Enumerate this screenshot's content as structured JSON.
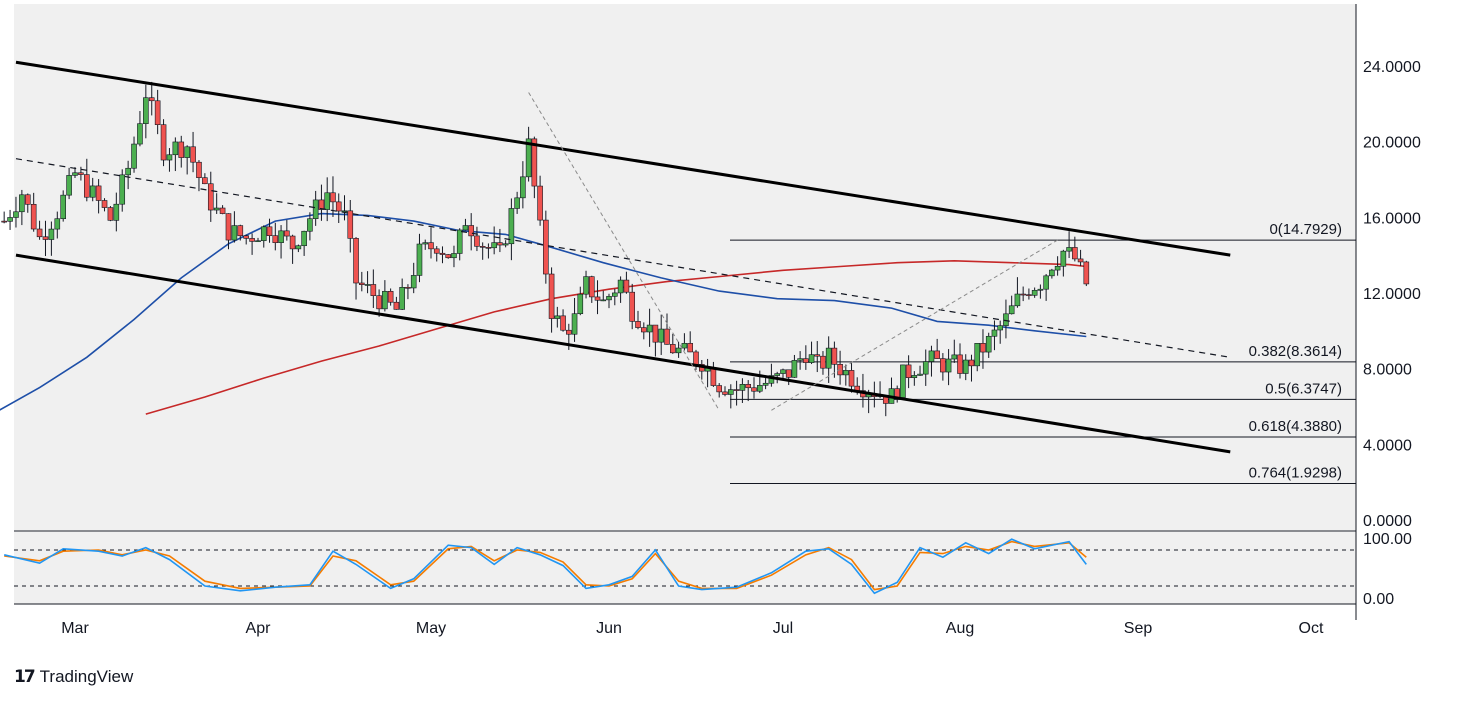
{
  "branding": {
    "logo_mark": "17",
    "name": "TradingView"
  },
  "colors": {
    "bull": "#26a69a",
    "bear": "#ef5350",
    "candle_body_bull": "#4caf50",
    "ma_fast": "#1e4fa8",
    "ma_slow": "#c62828",
    "stoch_k": "#2196f3",
    "stoch_d": "#f57c00",
    "background": "#f0f0f0"
  },
  "chart_data": {
    "type": "candlestick",
    "y_axis": {
      "ticks": [
        "24.0000",
        "20.0000",
        "16.0000",
        "12.0000",
        "8.0000",
        "4.0000",
        "0.0000"
      ],
      "values": [
        24,
        20,
        16,
        12,
        8,
        4,
        0
      ],
      "range": [
        -0.6,
        26.2
      ]
    },
    "x_axis": {
      "labels": [
        "Mar",
        "Apr",
        "May",
        "Jun",
        "Jul",
        "Aug",
        "Sep",
        "Oct"
      ],
      "day_index": [
        14,
        45,
        75,
        106,
        136,
        167,
        198,
        228
      ]
    },
    "fib_levels": [
      {
        "label": "0(14.7929)",
        "value": 14.7929
      },
      {
        "label": "0.382(8.3614)",
        "value": 8.3614
      },
      {
        "label": "0.5(6.3747)",
        "value": 6.3747
      },
      {
        "label": "0.618(4.3880)",
        "value": 4.388
      },
      {
        "label": "0.764(1.9298)",
        "value": 1.9298
      }
    ],
    "fib_start_day": 136,
    "fib_end_day": 234,
    "channel": {
      "upper": [
        [
          4,
          24.2
        ],
        [
          214,
          14.0
        ]
      ],
      "lower": [
        [
          4,
          14.0
        ],
        [
          214,
          3.6
        ]
      ],
      "mid_dashed": [
        [
          4,
          19.1
        ],
        [
          214,
          8.6
        ]
      ]
    },
    "diagonals": [
      {
        "from": [
          92,
          22.6
        ],
        "to": [
          125,
          5.8
        ]
      },
      {
        "from": [
          134,
          5.8
        ],
        "to": [
          184,
          14.8
        ]
      }
    ],
    "close_path": [
      [
        2,
        15.8
      ],
      [
        5,
        17.3
      ],
      [
        8,
        14.9
      ],
      [
        11,
        16.3
      ],
      [
        14,
        18.3
      ],
      [
        17,
        17.2
      ],
      [
        20,
        15.9
      ],
      [
        23,
        18.6
      ],
      [
        26,
        22.6
      ],
      [
        29,
        19.6
      ],
      [
        33,
        19.8
      ],
      [
        36,
        17.3
      ],
      [
        40,
        15.3
      ],
      [
        43,
        14.9
      ],
      [
        47,
        15.5
      ],
      [
        51,
        14.5
      ],
      [
        54,
        16.0
      ],
      [
        57,
        17.3
      ],
      [
        60,
        16.0
      ],
      [
        62,
        12.6
      ],
      [
        66,
        11.7
      ],
      [
        69,
        11.1
      ],
      [
        71,
        12.4
      ],
      [
        73,
        14.1
      ],
      [
        76,
        14.6
      ],
      [
        79,
        13.8
      ],
      [
        81,
        15.9
      ],
      [
        84,
        14.6
      ],
      [
        87,
        14.0
      ],
      [
        90,
        17.3
      ],
      [
        92,
        19.8
      ],
      [
        94,
        15.3
      ],
      [
        96,
        11.1
      ],
      [
        98,
        9.9
      ],
      [
        100,
        10.6
      ],
      [
        102,
        12.4
      ],
      [
        105,
        11.5
      ],
      [
        108,
        12.6
      ],
      [
        110,
        11.1
      ],
      [
        113,
        10.1
      ],
      [
        116,
        9.2
      ],
      [
        119,
        8.8
      ],
      [
        122,
        8.4
      ],
      [
        125,
        7.2
      ],
      [
        128,
        6.9
      ],
      [
        131,
        7.1
      ],
      [
        134,
        7.3
      ],
      [
        137,
        7.8
      ],
      [
        140,
        8.9
      ],
      [
        142,
        8.1
      ],
      [
        144,
        8.6
      ],
      [
        147,
        7.8
      ],
      [
        150,
        7.1
      ],
      [
        153,
        6.7
      ],
      [
        155,
        6.5
      ],
      [
        157,
        7.6
      ],
      [
        159,
        8.1
      ],
      [
        162,
        8.4
      ],
      [
        165,
        8.2
      ],
      [
        168,
        8.1
      ],
      [
        170,
        8.8
      ],
      [
        172,
        9.4
      ],
      [
        175,
        10.6
      ],
      [
        177,
        11.6
      ],
      [
        179,
        12.3
      ],
      [
        181,
        12.6
      ],
      [
        183,
        13.6
      ],
      [
        185,
        14.2
      ],
      [
        187,
        13.8
      ],
      [
        189,
        12.5
      ]
    ],
    "ma_blue": [
      [
        0,
        5.6
      ],
      [
        8,
        7.0
      ],
      [
        16,
        8.6
      ],
      [
        24,
        10.6
      ],
      [
        32,
        12.8
      ],
      [
        40,
        14.6
      ],
      [
        48,
        15.8
      ],
      [
        56,
        16.2
      ],
      [
        64,
        16.1
      ],
      [
        72,
        15.8
      ],
      [
        80,
        15.3
      ],
      [
        88,
        15.1
      ],
      [
        95,
        14.5
      ],
      [
        105,
        13.6
      ],
      [
        115,
        12.8
      ],
      [
        125,
        12.1
      ],
      [
        135,
        11.7
      ],
      [
        145,
        11.6
      ],
      [
        155,
        11.2
      ],
      [
        163,
        10.5
      ],
      [
        172,
        10.3
      ],
      [
        180,
        10.0
      ],
      [
        189,
        9.7
      ]
    ],
    "ma_red": [
      [
        26,
        5.6
      ],
      [
        36,
        6.5
      ],
      [
        46,
        7.5
      ],
      [
        56,
        8.4
      ],
      [
        66,
        9.2
      ],
      [
        76,
        10.1
      ],
      [
        86,
        11.0
      ],
      [
        96,
        11.7
      ],
      [
        106,
        12.2
      ],
      [
        116,
        12.6
      ],
      [
        126,
        12.9
      ],
      [
        136,
        13.2
      ],
      [
        146,
        13.4
      ],
      [
        156,
        13.6
      ],
      [
        166,
        13.7
      ],
      [
        176,
        13.6
      ],
      [
        186,
        13.5
      ],
      [
        189,
        13.4
      ]
    ],
    "stochastic": {
      "range": [
        0,
        100
      ],
      "ticks": [
        "100.00",
        "0.00"
      ],
      "tick_values": [
        100,
        0
      ],
      "overbought": 80,
      "oversold": 20,
      "k_path": [
        [
          2,
          72
        ],
        [
          8,
          58
        ],
        [
          12,
          82
        ],
        [
          18,
          78
        ],
        [
          22,
          70
        ],
        [
          26,
          84
        ],
        [
          30,
          64
        ],
        [
          36,
          20
        ],
        [
          42,
          12
        ],
        [
          48,
          18
        ],
        [
          54,
          22
        ],
        [
          58,
          78
        ],
        [
          62,
          56
        ],
        [
          68,
          16
        ],
        [
          72,
          32
        ],
        [
          78,
          88
        ],
        [
          82,
          84
        ],
        [
          86,
          56
        ],
        [
          90,
          84
        ],
        [
          94,
          72
        ],
        [
          98,
          54
        ],
        [
          102,
          16
        ],
        [
          106,
          22
        ],
        [
          110,
          36
        ],
        [
          114,
          80
        ],
        [
          118,
          20
        ],
        [
          122,
          14
        ],
        [
          128,
          18
        ],
        [
          134,
          42
        ],
        [
          140,
          78
        ],
        [
          144,
          82
        ],
        [
          148,
          56
        ],
        [
          152,
          8
        ],
        [
          156,
          26
        ],
        [
          160,
          84
        ],
        [
          164,
          68
        ],
        [
          168,
          92
        ],
        [
          172,
          74
        ],
        [
          176,
          98
        ],
        [
          180,
          82
        ],
        [
          186,
          94
        ],
        [
          189,
          56
        ]
      ],
      "d_path": [
        [
          2,
          70
        ],
        [
          8,
          62
        ],
        [
          12,
          78
        ],
        [
          18,
          80
        ],
        [
          22,
          72
        ],
        [
          26,
          80
        ],
        [
          30,
          70
        ],
        [
          36,
          28
        ],
        [
          42,
          16
        ],
        [
          48,
          18
        ],
        [
          54,
          20
        ],
        [
          58,
          70
        ],
        [
          62,
          62
        ],
        [
          68,
          22
        ],
        [
          72,
          28
        ],
        [
          78,
          82
        ],
        [
          82,
          86
        ],
        [
          86,
          62
        ],
        [
          90,
          80
        ],
        [
          94,
          76
        ],
        [
          98,
          60
        ],
        [
          102,
          22
        ],
        [
          106,
          20
        ],
        [
          110,
          32
        ],
        [
          114,
          74
        ],
        [
          118,
          28
        ],
        [
          122,
          16
        ],
        [
          128,
          16
        ],
        [
          134,
          38
        ],
        [
          140,
          72
        ],
        [
          144,
          84
        ],
        [
          148,
          64
        ],
        [
          152,
          14
        ],
        [
          156,
          20
        ],
        [
          160,
          76
        ],
        [
          164,
          74
        ],
        [
          168,
          86
        ],
        [
          172,
          80
        ],
        [
          176,
          94
        ],
        [
          180,
          86
        ],
        [
          186,
          92
        ],
        [
          189,
          68
        ]
      ]
    }
  }
}
